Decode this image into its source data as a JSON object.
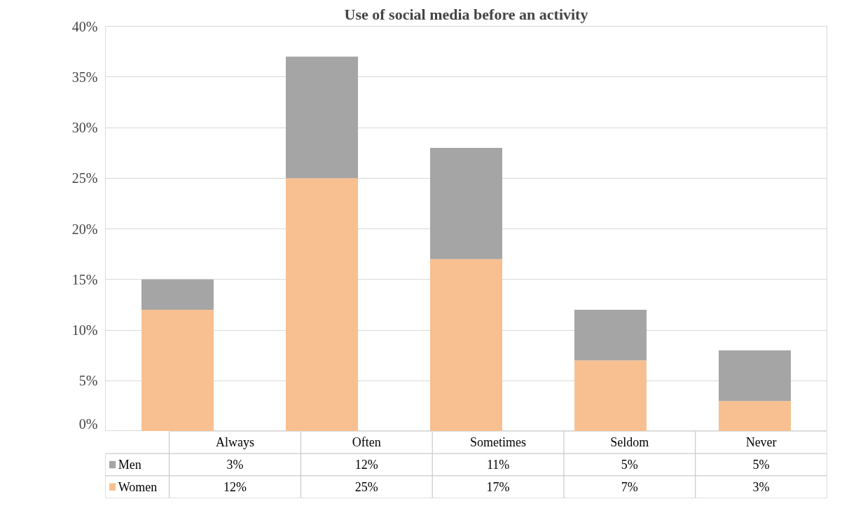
{
  "chart_data": {
    "type": "bar",
    "title": "Use of social media before an activity",
    "stacked": true,
    "categories": [
      "Always",
      "Often",
      "Sometimes",
      "Seldom",
      "Never"
    ],
    "series": [
      {
        "name": "Women",
        "color": "#f8c090",
        "values": [
          12,
          25,
          17,
          7,
          3
        ],
        "value_labels": [
          "12%",
          "25%",
          "17%",
          "7%",
          "3%"
        ]
      },
      {
        "name": "Men",
        "color": "#a5a5a5",
        "values": [
          3,
          12,
          11,
          5,
          5
        ],
        "value_labels": [
          "3%",
          "12%",
          "11%",
          "5%",
          "5%"
        ]
      }
    ],
    "ylim": [
      0,
      40
    ],
    "yticks": [
      {
        "value": 0,
        "label": "0%"
      },
      {
        "value": 5,
        "label": "5%"
      },
      {
        "value": 10,
        "label": "10%"
      },
      {
        "value": 15,
        "label": "15%"
      },
      {
        "value": 20,
        "label": "20%"
      },
      {
        "value": 25,
        "label": "25%"
      },
      {
        "value": 30,
        "label": "30%"
      },
      {
        "value": 35,
        "label": "35%"
      },
      {
        "value": 40,
        "label": "40%"
      }
    ],
    "grid": "y",
    "legend": "bottom"
  }
}
